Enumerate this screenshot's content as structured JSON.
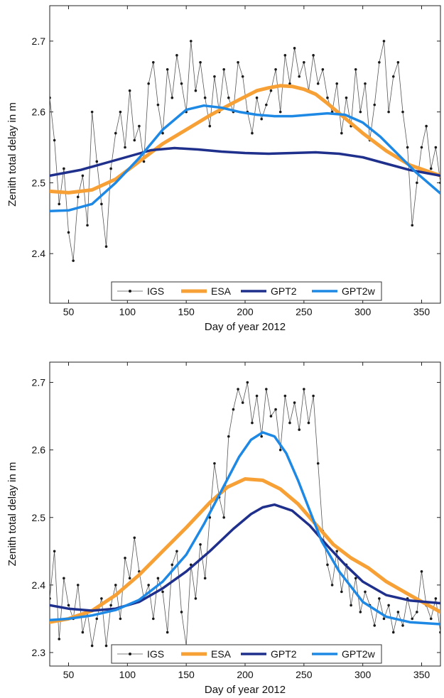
{
  "chart_data": [
    {
      "type": "line",
      "xlabel": "Day of year 2012",
      "ylabel": "Zenith total delay in m",
      "xlim": [
        34,
        366
      ],
      "ylim": [
        2.33,
        2.75
      ],
      "xticks": [
        50,
        100,
        150,
        200,
        250,
        300,
        350
      ],
      "xtick_labels": [
        "50",
        "100",
        "150",
        "200",
        "250",
        "300",
        "350"
      ],
      "yticks": [
        2.4,
        2.5,
        2.6,
        2.7
      ],
      "ytick_labels": [
        "2.4",
        "2.5",
        "2.6",
        "2.7"
      ],
      "grid": false,
      "legend_position": "bottom",
      "legend": [
        "IGS",
        "ESA",
        "GPT2",
        "GPT2w"
      ],
      "series": [
        {
          "name": "IGS",
          "color": "#1a1a1a",
          "style": "points-line",
          "x": [
            34,
            38,
            42,
            46,
            50,
            54,
            58,
            62,
            66,
            70,
            74,
            78,
            82,
            86,
            90,
            94,
            98,
            102,
            106,
            110,
            114,
            118,
            122,
            126,
            130,
            134,
            138,
            142,
            146,
            150,
            154,
            158,
            162,
            166,
            170,
            174,
            178,
            182,
            186,
            190,
            194,
            198,
            202,
            206,
            210,
            214,
            218,
            222,
            226,
            230,
            234,
            238,
            242,
            246,
            250,
            254,
            258,
            262,
            266,
            270,
            274,
            278,
            282,
            286,
            290,
            294,
            298,
            302,
            306,
            310,
            314,
            318,
            322,
            326,
            330,
            334,
            338,
            342,
            346,
            350,
            354,
            358,
            362,
            366
          ],
          "values": [
            2.62,
            2.56,
            2.47,
            2.52,
            2.43,
            2.39,
            2.48,
            2.51,
            2.44,
            2.6,
            2.53,
            2.47,
            2.41,
            2.52,
            2.57,
            2.6,
            2.55,
            2.63,
            2.56,
            2.58,
            2.53,
            2.64,
            2.67,
            2.61,
            2.57,
            2.66,
            2.62,
            2.68,
            2.64,
            2.6,
            2.7,
            2.63,
            2.67,
            2.62,
            2.58,
            2.65,
            2.6,
            2.66,
            2.62,
            2.6,
            2.67,
            2.65,
            2.6,
            2.57,
            2.62,
            2.59,
            2.61,
            2.63,
            2.66,
            2.6,
            2.68,
            2.64,
            2.69,
            2.65,
            2.67,
            2.63,
            2.68,
            2.64,
            2.66,
            2.62,
            2.6,
            2.64,
            2.57,
            2.62,
            2.58,
            2.66,
            2.6,
            2.64,
            2.56,
            2.61,
            2.67,
            2.7,
            2.6,
            2.65,
            2.67,
            2.6,
            2.55,
            2.44,
            2.5,
            2.55,
            2.58,
            2.52,
            2.55,
            2.5
          ]
        },
        {
          "name": "ESA",
          "color": "#f7a035",
          "style": "line",
          "x": [
            34,
            50,
            70,
            90,
            110,
            130,
            150,
            170,
            190,
            210,
            220,
            230,
            240,
            250,
            260,
            270,
            280,
            300,
            320,
            340,
            366
          ],
          "values": [
            2.488,
            2.486,
            2.49,
            2.505,
            2.53,
            2.555,
            2.575,
            2.595,
            2.613,
            2.63,
            2.634,
            2.637,
            2.636,
            2.632,
            2.625,
            2.612,
            2.598,
            2.57,
            2.545,
            2.525,
            2.51
          ]
        },
        {
          "name": "GPT2",
          "color": "#1f2f8c",
          "style": "line",
          "x": [
            34,
            60,
            90,
            120,
            140,
            160,
            180,
            200,
            220,
            240,
            260,
            280,
            300,
            320,
            340,
            366
          ],
          "values": [
            2.51,
            2.518,
            2.532,
            2.546,
            2.549,
            2.547,
            2.544,
            2.542,
            2.541,
            2.542,
            2.543,
            2.541,
            2.536,
            2.527,
            2.518,
            2.51
          ]
        },
        {
          "name": "GPT2w",
          "color": "#1e88e5",
          "style": "line",
          "x": [
            34,
            50,
            70,
            90,
            110,
            130,
            150,
            165,
            180,
            195,
            210,
            225,
            240,
            255,
            270,
            285,
            300,
            315,
            330,
            345,
            366
          ],
          "values": [
            2.46,
            2.461,
            2.47,
            2.5,
            2.535,
            2.575,
            2.603,
            2.609,
            2.606,
            2.6,
            2.596,
            2.594,
            2.594,
            2.596,
            2.598,
            2.596,
            2.585,
            2.565,
            2.54,
            2.515,
            2.485
          ]
        }
      ]
    },
    {
      "type": "line",
      "xlabel": "Day of year 2012",
      "ylabel": "Zenith total delay in m",
      "xlim": [
        34,
        366
      ],
      "ylim": [
        2.28,
        2.73
      ],
      "xticks": [
        50,
        100,
        150,
        200,
        250,
        300,
        350
      ],
      "xtick_labels": [
        "50",
        "100",
        "150",
        "200",
        "250",
        "300",
        "350"
      ],
      "yticks": [
        2.3,
        2.4,
        2.5,
        2.6,
        2.7
      ],
      "ytick_labels": [
        "2.3",
        "2.4",
        "2.5",
        "2.6",
        "2.7"
      ],
      "grid": false,
      "legend_position": "bottom",
      "legend": [
        "IGS",
        "ESA",
        "GPT2",
        "GPT2w"
      ],
      "series": [
        {
          "name": "IGS",
          "color": "#1a1a1a",
          "style": "points-line",
          "x": [
            34,
            38,
            42,
            46,
            50,
            54,
            58,
            62,
            66,
            70,
            74,
            78,
            82,
            86,
            90,
            94,
            98,
            102,
            106,
            110,
            114,
            118,
            122,
            126,
            130,
            134,
            138,
            142,
            146,
            150,
            154,
            158,
            162,
            166,
            170,
            174,
            178,
            182,
            186,
            190,
            194,
            198,
            202,
            206,
            210,
            214,
            218,
            222,
            226,
            230,
            234,
            238,
            242,
            246,
            250,
            254,
            258,
            262,
            266,
            270,
            274,
            278,
            282,
            286,
            290,
            294,
            298,
            302,
            306,
            310,
            314,
            318,
            322,
            326,
            330,
            334,
            338,
            342,
            346,
            350,
            354,
            358,
            362,
            366
          ],
          "values": [
            2.38,
            2.45,
            2.32,
            2.41,
            2.37,
            2.35,
            2.4,
            2.33,
            2.36,
            2.31,
            2.35,
            2.38,
            2.31,
            2.37,
            2.4,
            2.35,
            2.44,
            2.41,
            2.47,
            2.42,
            2.38,
            2.4,
            2.35,
            2.41,
            2.39,
            2.33,
            2.43,
            2.45,
            2.36,
            2.31,
            2.43,
            2.38,
            2.46,
            2.41,
            2.5,
            2.58,
            2.53,
            2.5,
            2.62,
            2.66,
            2.69,
            2.67,
            2.7,
            2.64,
            2.68,
            2.62,
            2.69,
            2.65,
            2.66,
            2.6,
            2.68,
            2.64,
            2.67,
            2.63,
            2.69,
            2.64,
            2.68,
            2.58,
            2.48,
            2.43,
            2.4,
            2.45,
            2.39,
            2.43,
            2.37,
            2.41,
            2.36,
            2.39,
            2.37,
            2.34,
            2.38,
            2.35,
            2.37,
            2.33,
            2.36,
            2.34,
            2.38,
            2.35,
            2.36,
            2.42,
            2.37,
            2.35,
            2.38,
            2.33
          ]
        },
        {
          "name": "ESA",
          "color": "#f7a035",
          "style": "line",
          "x": [
            34,
            50,
            70,
            90,
            110,
            130,
            150,
            170,
            185,
            200,
            215,
            230,
            245,
            260,
            275,
            290,
            305,
            320,
            340,
            366
          ],
          "values": [
            2.345,
            2.35,
            2.362,
            2.385,
            2.415,
            2.45,
            2.485,
            2.522,
            2.545,
            2.557,
            2.555,
            2.542,
            2.52,
            2.49,
            2.46,
            2.44,
            2.425,
            2.405,
            2.385,
            2.36
          ]
        },
        {
          "name": "GPT2",
          "color": "#1f2f8c",
          "style": "line",
          "x": [
            34,
            50,
            70,
            90,
            110,
            130,
            150,
            170,
            190,
            205,
            215,
            225,
            240,
            255,
            270,
            285,
            300,
            320,
            340,
            366
          ],
          "values": [
            2.37,
            2.365,
            2.362,
            2.365,
            2.375,
            2.395,
            2.42,
            2.45,
            2.483,
            2.505,
            2.515,
            2.519,
            2.51,
            2.488,
            2.458,
            2.43,
            2.405,
            2.385,
            2.377,
            2.373
          ]
        },
        {
          "name": "GPT2w",
          "color": "#1e88e5",
          "style": "line",
          "x": [
            34,
            50,
            70,
            90,
            110,
            130,
            150,
            165,
            180,
            195,
            205,
            215,
            225,
            235,
            245,
            255,
            265,
            280,
            300,
            320,
            340,
            366
          ],
          "values": [
            2.348,
            2.35,
            2.355,
            2.363,
            2.378,
            2.405,
            2.445,
            2.49,
            2.54,
            2.59,
            2.615,
            2.626,
            2.62,
            2.595,
            2.555,
            2.51,
            2.465,
            2.42,
            2.375,
            2.353,
            2.345,
            2.342
          ]
        }
      ]
    }
  ]
}
